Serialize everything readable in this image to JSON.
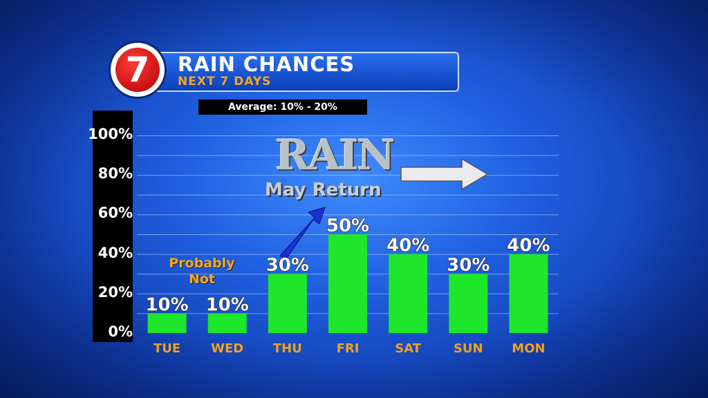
{
  "header": {
    "title": "RAIN CHANCES",
    "subtitle": "NEXT 7 DAYS",
    "logo_text": "7",
    "average_label": "Average: 10% - 20%"
  },
  "graphic": {
    "headline": "RAIN",
    "subheadline": "May Return",
    "note_line1": "Probably",
    "note_line2": "Not"
  },
  "colors": {
    "bar": "#1ee62a",
    "day_label": "#f0a020",
    "accent": "#f5a623"
  },
  "chart_data": {
    "type": "bar",
    "categories": [
      "TUE",
      "WED",
      "THU",
      "FRI",
      "SAT",
      "SUN",
      "MON"
    ],
    "values": [
      10,
      10,
      30,
      50,
      40,
      30,
      40
    ],
    "value_labels": [
      "10%",
      "10%",
      "30%",
      "50%",
      "40%",
      "30%",
      "40%"
    ],
    "yticks": [
      "0%",
      "20%",
      "40%",
      "60%",
      "80%",
      "100%"
    ],
    "ylim": [
      0,
      100
    ],
    "grid": true
  }
}
